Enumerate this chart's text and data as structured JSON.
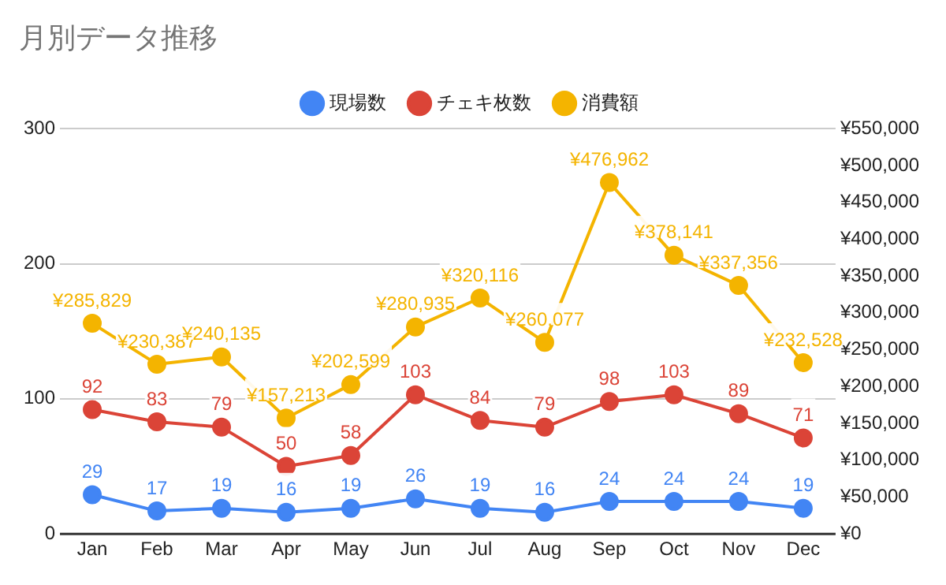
{
  "chart_data": {
    "type": "line",
    "title": "月別データ推移",
    "categories": [
      "Jan",
      "Feb",
      "Mar",
      "Apr",
      "May",
      "Jun",
      "Jul",
      "Aug",
      "Sep",
      "Oct",
      "Nov",
      "Dec"
    ],
    "series": [
      {
        "name": "現場数",
        "color": "#4285f4",
        "values": [
          29,
          17,
          19,
          16,
          19,
          26,
          19,
          16,
          24,
          24,
          24,
          19
        ],
        "value_labels": [
          "29",
          "17",
          "19",
          "16",
          "19",
          "26",
          "19",
          "16",
          "24",
          "24",
          "24",
          "19"
        ]
      },
      {
        "name": "チェキ枚数",
        "color": "#db4437",
        "values": [
          92,
          83,
          79,
          50,
          58,
          103,
          84,
          79,
          98,
          103,
          89,
          71
        ],
        "value_labels": [
          "92",
          "83",
          "79",
          "50",
          "58",
          "103",
          "84",
          "79",
          "98",
          "103",
          "89",
          "71"
        ]
      },
      {
        "name": "消費額",
        "color": "#f4b400",
        "axis": "y2",
        "values": [
          285829,
          230387,
          240135,
          157213,
          202599,
          280935,
          320116,
          260077,
          476962,
          378141,
          337356,
          232528
        ],
        "value_labels": [
          "¥285,829",
          "¥230,387",
          "¥240,135",
          "¥157,213",
          "¥202,599",
          "¥280,935",
          "¥320,116",
          "¥260,077",
          "¥476,962",
          "¥378,141",
          "¥337,356",
          "¥232,528"
        ]
      }
    ],
    "ylim": [
      0,
      300
    ],
    "yticks": [
      0,
      100,
      200,
      300
    ],
    "y2lim": [
      0,
      550000
    ],
    "y2ticks": [
      {
        "value": 0,
        "label": "¥0"
      },
      {
        "value": 50000,
        "label": "¥50,000"
      },
      {
        "value": 100000,
        "label": "¥100,000"
      },
      {
        "value": 150000,
        "label": "¥150,000"
      },
      {
        "value": 200000,
        "label": "¥200,000"
      },
      {
        "value": 250000,
        "label": "¥250,000"
      },
      {
        "value": 300000,
        "label": "¥300,000"
      },
      {
        "value": 350000,
        "label": "¥350,000"
      },
      {
        "value": 400000,
        "label": "¥400,000"
      },
      {
        "value": 450000,
        "label": "¥450,000"
      },
      {
        "value": 500000,
        "label": "¥500,000"
      },
      {
        "value": 550000,
        "label": "¥550,000"
      }
    ],
    "grid": "y",
    "legend": "top",
    "marker": "circle",
    "line_style": "solid"
  }
}
